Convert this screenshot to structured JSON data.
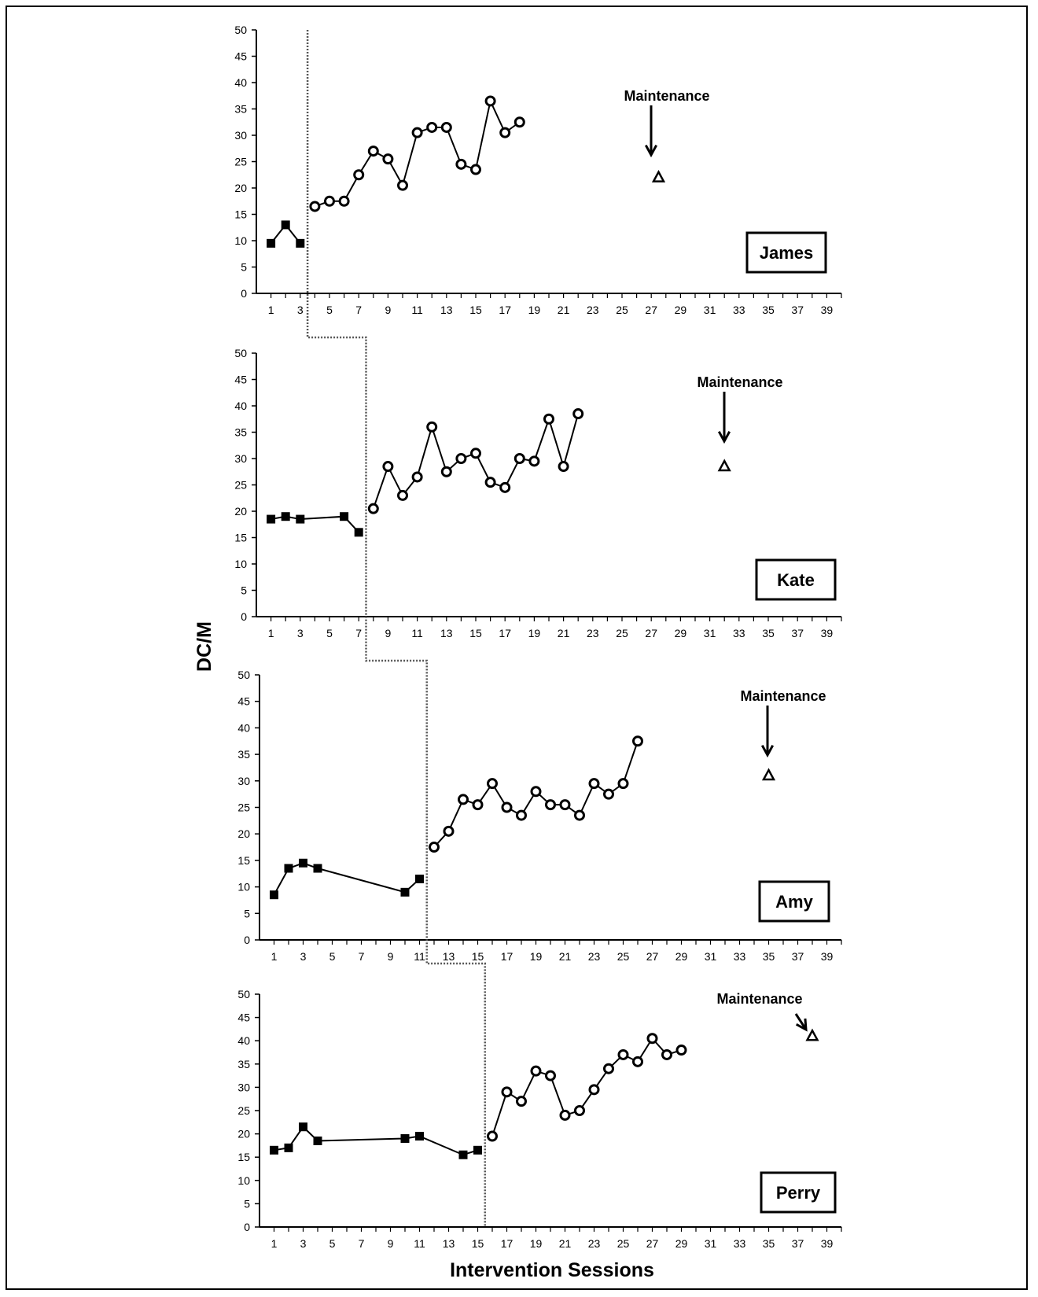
{
  "chart_data": {
    "type": "line",
    "ylabel": "DC/M",
    "xlabel": "Intervention Sessions",
    "ylim": [
      0,
      50
    ],
    "xlim": [
      0,
      40
    ],
    "y_ticks": [
      "0",
      "5",
      "10",
      "15",
      "20",
      "25",
      "30",
      "35",
      "40",
      "45",
      "50"
    ],
    "x_ticks": [
      "1",
      "3",
      "5",
      "7",
      "9",
      "11",
      "13",
      "15",
      "17",
      "19",
      "21",
      "23",
      "25",
      "27",
      "29",
      "31",
      "33",
      "35",
      "37",
      "39"
    ],
    "annotation_label": "Maintenance",
    "panels": [
      {
        "name": "James",
        "baseline": {
          "x": [
            1,
            2,
            3
          ],
          "y": [
            9.5,
            13,
            9.5
          ]
        },
        "intervention": {
          "x": [
            4,
            5,
            6,
            7,
            8,
            9,
            10,
            11,
            12,
            13,
            14,
            15,
            16,
            17,
            18
          ],
          "y": [
            16.5,
            17.5,
            17.5,
            22.5,
            27,
            25.5,
            20.5,
            30.5,
            31.5,
            31.5,
            24.5,
            23.5,
            36.5,
            30.5,
            32.5
          ]
        },
        "maintenance": {
          "x": [
            27.5
          ],
          "y": [
            22
          ]
        }
      },
      {
        "name": "Kate",
        "baseline": {
          "x": [
            1,
            2,
            3,
            6,
            7
          ],
          "y": [
            18.5,
            19,
            18.5,
            19,
            16
          ]
        },
        "intervention": {
          "x": [
            8,
            9,
            10,
            11,
            12,
            13,
            14,
            15,
            16,
            17,
            18,
            19,
            20,
            21,
            22
          ],
          "y": [
            20.5,
            28.5,
            23,
            26.5,
            36,
            27.5,
            30,
            31,
            25.5,
            24.5,
            30,
            29.5,
            37.5,
            28.5,
            38.5
          ]
        },
        "maintenance": {
          "x": [
            32
          ],
          "y": [
            28.5
          ]
        }
      },
      {
        "name": "Amy",
        "baseline": {
          "x": [
            1,
            2,
            3,
            4,
            10,
            11
          ],
          "y": [
            8.5,
            13.5,
            14.5,
            13.5,
            9,
            11.5
          ]
        },
        "intervention": {
          "x": [
            12,
            13,
            14,
            15,
            16,
            17,
            18,
            19,
            20,
            21,
            22,
            23,
            24,
            25,
            26
          ],
          "y": [
            17.5,
            20.5,
            26.5,
            25.5,
            29.5,
            25,
            23.5,
            28,
            25.5,
            25.5,
            23.5,
            29.5,
            27.5,
            29.5,
            37.5
          ]
        },
        "maintenance": {
          "x": [
            35
          ],
          "y": [
            31
          ]
        }
      },
      {
        "name": "Perry",
        "baseline": {
          "x": [
            1,
            2,
            3,
            4,
            10,
            11,
            14,
            15
          ],
          "y": [
            16.5,
            17,
            21.5,
            18.5,
            19,
            19.5,
            15.5,
            16.5
          ]
        },
        "intervention": {
          "x": [
            16,
            17,
            18,
            19,
            20,
            21,
            22,
            23,
            24,
            25,
            26,
            27,
            28,
            29
          ],
          "y": [
            19.5,
            29,
            27,
            33.5,
            32.5,
            24,
            25,
            29.5,
            34,
            37,
            35.5,
            40.5,
            37,
            38
          ]
        },
        "maintenance": {
          "x": [
            38
          ],
          "y": [
            41
          ]
        }
      }
    ],
    "phase_change_after": [
      3.5,
      7.5,
      11.5,
      15.5
    ]
  }
}
